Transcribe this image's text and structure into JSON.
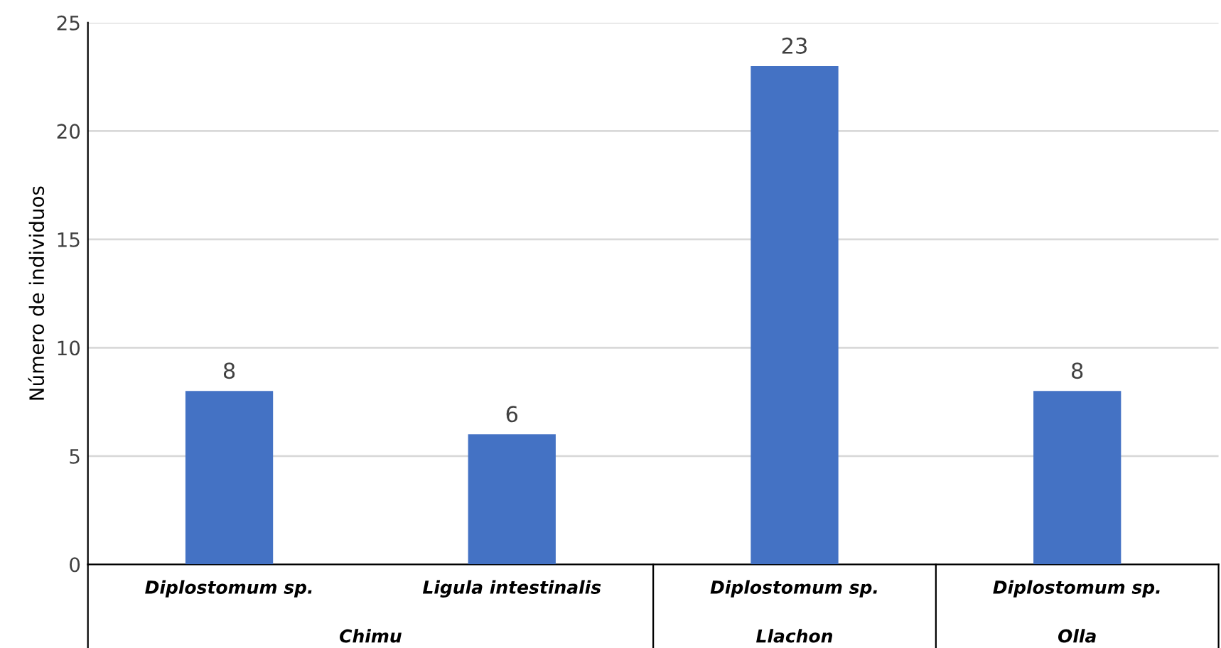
{
  "chart_data": {
    "type": "bar",
    "categories": [
      "Diplostomum sp.",
      "Ligula intestinalis",
      "Diplostomum sp.",
      "Diplostomum sp."
    ],
    "values": [
      8,
      6,
      23,
      8
    ],
    "color": "#4472c4",
    "ylabel": "Número de individuos",
    "ylim": [
      0,
      25
    ],
    "yticks": [
      0,
      5,
      10,
      15,
      20,
      25
    ],
    "grid": "y",
    "data_labels": true,
    "annotations": [
      "Chimu",
      "Llachon",
      "Olla"
    ]
  }
}
